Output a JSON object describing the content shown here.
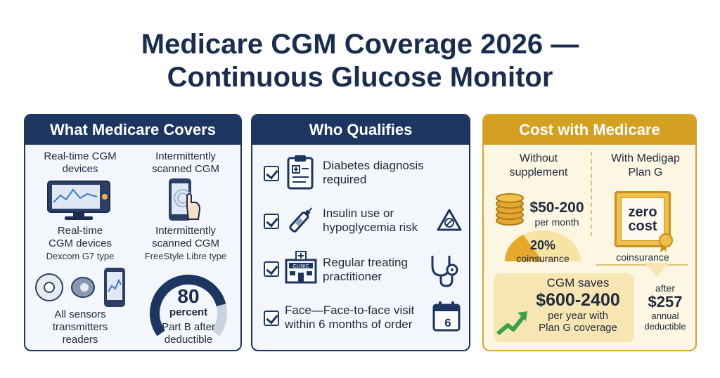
{
  "title": {
    "line1": "Medicare CGM Coverage 2026 —",
    "line2": "Continuous Glucose Monitor"
  },
  "covers": {
    "header": "What Medicare Covers",
    "rt_label1": "Real-time CGM",
    "rt_label2": "devices",
    "is_label1": "Intermittently",
    "is_label2": "scanned CGM",
    "rt_desc1": "Real-time",
    "rt_desc2": "CGM devices",
    "rt_example": "Dexcom G7 type",
    "is_desc1": "Intermittently",
    "is_desc2": "scanned CGM",
    "is_example": "FreeStyle Libre type",
    "sensors1": "All sensors",
    "sensors2": "transmitters",
    "sensors3": "readers",
    "gauge_value": "80",
    "gauge_fraction": 0.8,
    "gauge_unit": "percent",
    "gauge_note1": "Part B after",
    "gauge_note2": "deductible"
  },
  "qualifies": {
    "header": "Who Qualifies",
    "clinic_sign": "CLINIC",
    "calendar_day": "6",
    "items": [
      {
        "line1": "Diabetes diagnosis",
        "line2": "required",
        "icon": "clipboard-icon"
      },
      {
        "line1": "Insulin use or",
        "line2": "hypoglycemia risk",
        "icon": "insulin-pen-icon"
      },
      {
        "line1": "Regular treating",
        "line2": "practitioner",
        "icon": "clinic-icon"
      },
      {
        "line1": "Face—Face-to-face visit",
        "line2": "within 6 months of order",
        "icon": "calendar-icon"
      }
    ]
  },
  "cost": {
    "header": "Cost with Medicare",
    "without1": "Without",
    "without2": "supplement",
    "with1": "With Medigap",
    "with2": "Plan G",
    "price": "$50-200",
    "per_month": "per month",
    "coins_pct": "20%",
    "coins_label": "coinsurance",
    "zero1": "zero",
    "zero2": "cost",
    "coins_label2": "coinsurance",
    "saves_title": "CGM saves",
    "saves_amount": "$600-2400",
    "saves_line1": "per year with",
    "saves_line2": "Plan G coverage",
    "after": "after",
    "deductible_amount": "$257",
    "annual": "annual",
    "deductible": "deductible"
  },
  "colors": {
    "navy": "#1d3561",
    "gold": "#d4a022",
    "green": "#3aa24a"
  }
}
